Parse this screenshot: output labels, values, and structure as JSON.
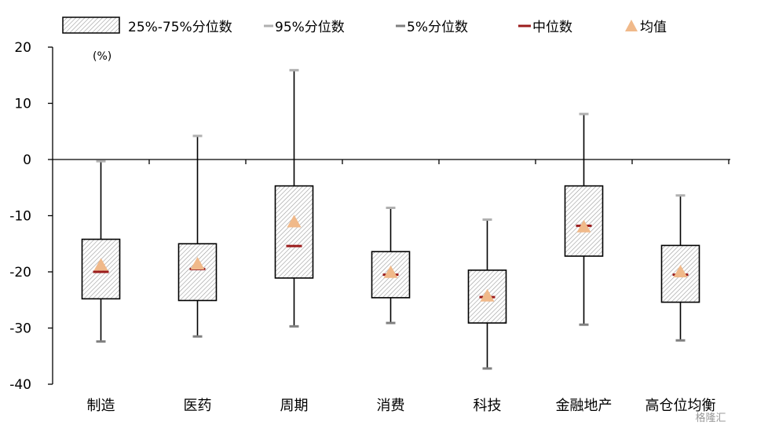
{
  "chart_data": {
    "type": "box",
    "unit": "(%)",
    "ylim": [
      -40,
      20
    ],
    "yticks": [
      20,
      10,
      0,
      -10,
      -20,
      -30,
      -40
    ],
    "categories": [
      "制造",
      "医药",
      "周期",
      "消费",
      "科技",
      "金融地产",
      "高仓位均衡"
    ],
    "legend": {
      "iqr": "25%-75%分位数",
      "p95": "95%分位数",
      "p5": "5%分位数",
      "median": "中位数",
      "mean": "均值"
    },
    "series": [
      {
        "name": "95%分位数",
        "values": [
          -0.3,
          4.2,
          15.9,
          -8.6,
          -10.7,
          8.1,
          -6.4
        ]
      },
      {
        "name": "75%分位数",
        "values": [
          -14.2,
          -15.0,
          -4.7,
          -16.4,
          -19.7,
          -4.7,
          -15.3
        ]
      },
      {
        "name": "中位数",
        "values": [
          -20.0,
          -19.5,
          -15.4,
          -20.5,
          -24.5,
          -11.8,
          -20.5
        ]
      },
      {
        "name": "均值",
        "values": [
          -18.8,
          -18.6,
          -11.1,
          -20.1,
          -24.3,
          -12.0,
          -20.0
        ]
      },
      {
        "name": "25%分位数",
        "values": [
          -24.8,
          -25.1,
          -21.1,
          -24.6,
          -29.1,
          -17.2,
          -25.4
        ]
      },
      {
        "name": "5%分位数",
        "values": [
          -32.4,
          -31.5,
          -29.7,
          -29.1,
          -37.2,
          -29.4,
          -32.2
        ]
      }
    ],
    "colors": {
      "box_border": "#000000",
      "hatch": "#9a9a9a",
      "whisker": "#000000",
      "p95_cap": "#b0b0b0",
      "p5_cap": "#808080",
      "median": "#9b1c1c",
      "mean": "#f0b98a"
    }
  },
  "watermark": "格隆汇"
}
